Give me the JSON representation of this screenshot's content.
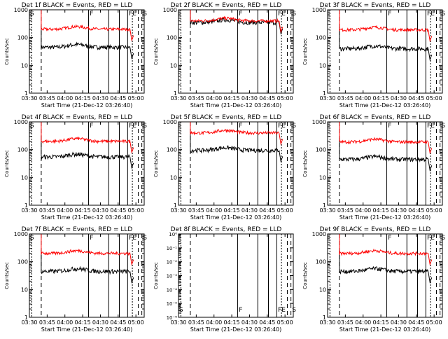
{
  "figure": {
    "ylabel": "Counts/sec",
    "xlabel": "Start Time (21-Dec-12 03:26:40)",
    "x_ticks": [
      "03:30",
      "03:45",
      "04:00",
      "04:15",
      "04:30",
      "04:45",
      "05:00"
    ],
    "y_ticks_log": [
      "1",
      "10",
      "100",
      "1000"
    ],
    "y_ticks_tiny": [
      "10⁰",
      "10⁻¹",
      "10⁻²",
      "10⁻³",
      "10⁻⁴",
      "10⁻⁵",
      "10⁻⁶"
    ],
    "colors": {
      "black_series": "#000000",
      "red_series": "#ff0000",
      "vlines": "#000000"
    }
  },
  "chart_data": [
    {
      "type": "line",
      "title": "Det 1f BLACK = Events, RED = LLD",
      "detector": "1f",
      "yscale": "log",
      "ylim": [
        1,
        1000
      ],
      "xlim": [
        "03:30",
        "05:07"
      ],
      "annotations": [
        "S",
        "F",
        "FE",
        "S"
      ],
      "series": [
        {
          "name": "Events",
          "color": "black",
          "level": 45
        },
        {
          "name": "LLD",
          "color": "red",
          "level": 200
        }
      ]
    },
    {
      "type": "line",
      "title": "Det 2f BLACK = Events, RED = LLD",
      "detector": "2f",
      "yscale": "log",
      "ylim": [
        1,
        1000
      ],
      "annotations": [
        "F",
        "FE",
        "S"
      ],
      "series": [
        {
          "name": "Events",
          "color": "black",
          "level": 350
        },
        {
          "name": "LLD",
          "color": "red",
          "level": 400
        }
      ]
    },
    {
      "type": "line",
      "title": "Det 3f BLACK = Events, RED = LLD",
      "detector": "3f",
      "yscale": "log",
      "ylim": [
        1,
        1000
      ],
      "annotations": [
        "F",
        "FE",
        "S"
      ],
      "series": [
        {
          "name": "Events",
          "color": "black",
          "level": 40
        },
        {
          "name": "LLD",
          "color": "red",
          "level": 190
        }
      ]
    },
    {
      "type": "line",
      "title": "Det 4f BLACK = Events, RED = LLD",
      "detector": "4f",
      "yscale": "log",
      "ylim": [
        1,
        1000
      ],
      "annotations": [
        "S",
        "F",
        "FE",
        "S"
      ],
      "series": [
        {
          "name": "Events",
          "color": "black",
          "level": 55
        },
        {
          "name": "LLD",
          "color": "red",
          "level": 200
        }
      ]
    },
    {
      "type": "line",
      "title": "Det 5f BLACK = Events, RED = LLD",
      "detector": "5f",
      "yscale": "log",
      "ylim": [
        1,
        1000
      ],
      "annotations": [
        "F",
        "FE",
        "S"
      ],
      "series": [
        {
          "name": "Events",
          "color": "black",
          "level": 95
        },
        {
          "name": "LLD",
          "color": "red",
          "level": 400
        }
      ]
    },
    {
      "type": "line",
      "title": "Det 6f BLACK = Events, RED = LLD",
      "detector": "6f",
      "yscale": "log",
      "ylim": [
        1,
        1000
      ],
      "annotations": [
        "F",
        "FE",
        "S"
      ],
      "series": [
        {
          "name": "Events",
          "color": "black",
          "level": 45
        },
        {
          "name": "LLD",
          "color": "red",
          "level": 190
        }
      ]
    },
    {
      "type": "line",
      "title": "Det 7f BLACK = Events, RED = LLD",
      "detector": "7f",
      "yscale": "log",
      "ylim": [
        1,
        1000
      ],
      "annotations": [
        "S",
        "F",
        "FE",
        "S"
      ],
      "series": [
        {
          "name": "Events",
          "color": "black",
          "level": 45
        },
        {
          "name": "LLD",
          "color": "red",
          "level": 200
        }
      ]
    },
    {
      "type": "line",
      "title": "Det 8f BLACK = Events, RED = LLD",
      "detector": "8f",
      "yscale": "log",
      "ylim": [
        1e-06,
        1
      ],
      "annotations": [
        "S",
        "F",
        "FE",
        "S"
      ],
      "series": []
    },
    {
      "type": "line",
      "title": "Det 9f BLACK = Events, RED = LLD",
      "detector": "9f",
      "yscale": "log",
      "ylim": [
        1,
        1000
      ],
      "annotations": [
        "F",
        "FE",
        "S"
      ],
      "series": [
        {
          "name": "Events",
          "color": "black",
          "level": 45
        },
        {
          "name": "LLD",
          "color": "red",
          "level": 200
        }
      ]
    }
  ]
}
